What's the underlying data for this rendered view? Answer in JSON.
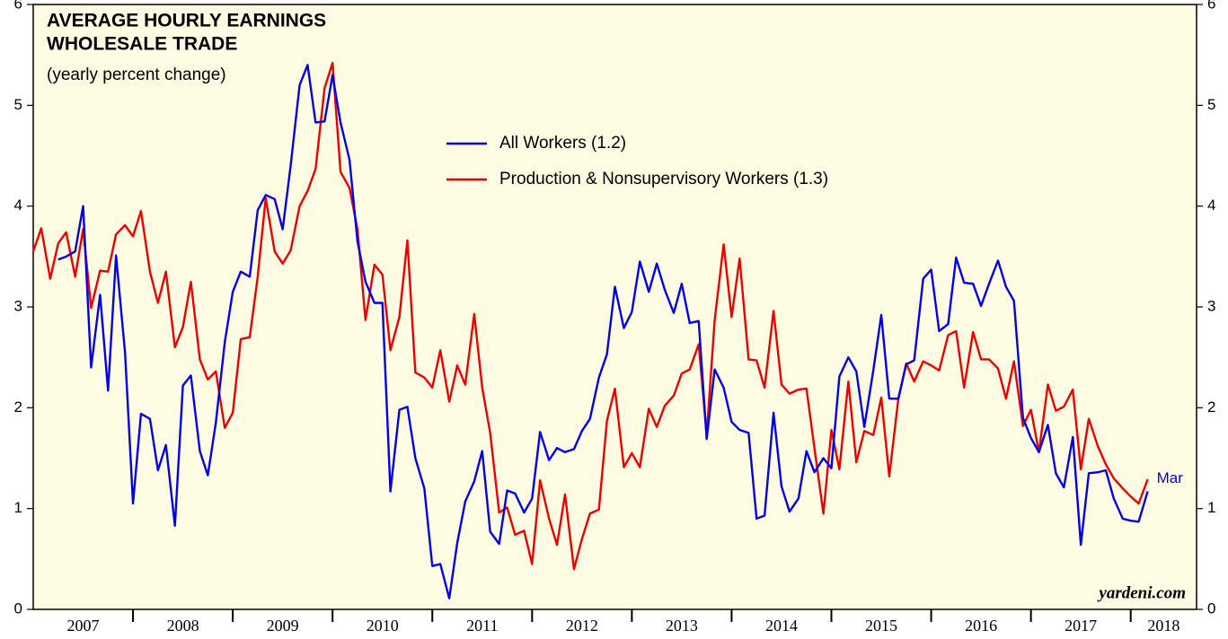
{
  "chart_data": {
    "type": "line",
    "title": [
      "AVERAGE HOURLY EARNINGS",
      "WHOLESALE TRADE"
    ],
    "subtitle": "(yearly percent change)",
    "annotation": "Mar",
    "credit": "yardeni.com",
    "background": "#fdfbe1",
    "x": [
      2007.0,
      2007.08,
      2007.17,
      2007.25,
      2007.33,
      2007.42,
      2007.5,
      2007.58,
      2007.67,
      2007.75,
      2007.83,
      2007.92,
      2008.0,
      2008.08,
      2008.17,
      2008.25,
      2008.33,
      2008.42,
      2008.5,
      2008.58,
      2008.67,
      2008.75,
      2008.83,
      2008.92,
      2009.0,
      2009.08,
      2009.17,
      2009.25,
      2009.33,
      2009.42,
      2009.5,
      2009.58,
      2009.67,
      2009.75,
      2009.83,
      2009.92,
      2010.0,
      2010.08,
      2010.17,
      2010.25,
      2010.33,
      2010.42,
      2010.5,
      2010.58,
      2010.67,
      2010.75,
      2010.83,
      2010.92,
      2011.0,
      2011.08,
      2011.17,
      2011.25,
      2011.33,
      2011.42,
      2011.5,
      2011.58,
      2011.67,
      2011.75,
      2011.83,
      2011.92,
      2012.0,
      2012.08,
      2012.17,
      2012.25,
      2012.33,
      2012.42,
      2012.5,
      2012.58,
      2012.67,
      2012.75,
      2012.83,
      2012.92,
      2013.0,
      2013.08,
      2013.17,
      2013.25,
      2013.33,
      2013.42,
      2013.5,
      2013.58,
      2013.67,
      2013.75,
      2013.83,
      2013.92,
      2014.0,
      2014.08,
      2014.17,
      2014.25,
      2014.33,
      2014.42,
      2014.5,
      2014.58,
      2014.67,
      2014.75,
      2014.83,
      2014.92,
      2015.0,
      2015.08,
      2015.17,
      2015.25,
      2015.33,
      2015.42,
      2015.5,
      2015.58,
      2015.67,
      2015.75,
      2015.83,
      2015.92,
      2016.0,
      2016.08,
      2016.17,
      2016.25,
      2016.33,
      2016.42,
      2016.5,
      2016.58,
      2016.67,
      2016.75,
      2016.83,
      2016.92,
      2017.0,
      2017.08,
      2017.17,
      2017.25,
      2017.33,
      2017.42,
      2017.5,
      2017.58,
      2017.67,
      2017.75,
      2017.83,
      2017.92,
      2018.0,
      2018.08,
      2018.17
    ],
    "series": [
      {
        "name": "All Workers (1.2)",
        "color": "#0000ee",
        "values": [
          null,
          null,
          null,
          3.47,
          3.5,
          3.55,
          4.0,
          2.4,
          3.12,
          2.17,
          3.51,
          2.55,
          1.05,
          1.94,
          1.89,
          1.38,
          1.63,
          0.83,
          2.22,
          2.32,
          1.57,
          1.33,
          1.85,
          2.65,
          3.15,
          3.35,
          3.3,
          3.96,
          4.11,
          4.07,
          3.77,
          4.4,
          5.2,
          5.4,
          4.83,
          4.84,
          5.3,
          4.83,
          4.46,
          3.65,
          3.25,
          3.04,
          3.04,
          1.17,
          1.98,
          2.01,
          1.5,
          1.2,
          0.43,
          0.45,
          0.11,
          0.66,
          1.07,
          1.27,
          1.57,
          0.77,
          0.65,
          1.18,
          1.15,
          0.96,
          1.1,
          1.76,
          1.48,
          1.6,
          1.56,
          1.59,
          1.77,
          1.89,
          2.3,
          2.53,
          3.2,
          2.79,
          2.95,
          3.45,
          3.15,
          3.43,
          3.17,
          2.94,
          3.23,
          2.84,
          2.86,
          1.69,
          2.38,
          2.2,
          1.86,
          1.78,
          1.75,
          0.9,
          0.93,
          1.95,
          1.22,
          0.97,
          1.1,
          1.57,
          1.36,
          1.5,
          1.4,
          2.31,
          2.5,
          2.36,
          1.81,
          2.37,
          2.92,
          2.09,
          2.09,
          2.43,
          2.47,
          3.28,
          3.37,
          2.76,
          2.83,
          3.49,
          3.24,
          3.23,
          3.01,
          3.23,
          3.46,
          3.2,
          3.06,
          1.9,
          1.7,
          1.56,
          1.83,
          1.35,
          1.21,
          1.71,
          0.64,
          1.35,
          1.36,
          1.38,
          1.1,
          0.9,
          0.88,
          0.87,
          1.17
        ]
      },
      {
        "name": "Production & Nonsupervisory Workers (1.3)",
        "color": "#ee0000",
        "values": [
          3.55,
          3.78,
          3.28,
          3.63,
          3.74,
          3.3,
          3.77,
          2.99,
          3.36,
          3.35,
          3.72,
          3.81,
          3.7,
          3.95,
          3.35,
          3.04,
          3.35,
          2.6,
          2.8,
          3.25,
          2.48,
          2.28,
          2.36,
          1.8,
          1.95,
          2.68,
          2.7,
          3.3,
          4.08,
          3.55,
          3.43,
          3.56,
          4.0,
          4.15,
          4.37,
          5.17,
          5.42,
          4.34,
          4.18,
          3.77,
          2.87,
          3.42,
          3.32,
          2.57,
          2.9,
          3.66,
          2.35,
          2.3,
          2.2,
          2.57,
          2.06,
          2.42,
          2.23,
          2.93,
          2.2,
          1.75,
          0.96,
          1.01,
          0.74,
          0.78,
          0.45,
          1.28,
          0.9,
          0.64,
          1.14,
          0.4,
          0.7,
          0.95,
          0.99,
          1.87,
          2.19,
          1.41,
          1.55,
          1.41,
          1.99,
          1.81,
          2.02,
          2.12,
          2.34,
          2.38,
          2.63,
          1.73,
          2.87,
          3.62,
          2.9,
          3.48,
          2.48,
          2.47,
          2.2,
          2.96,
          2.23,
          2.14,
          2.18,
          2.19,
          1.6,
          0.95,
          1.78,
          1.39,
          2.26,
          1.46,
          1.77,
          1.73,
          2.1,
          1.32,
          2.08,
          2.44,
          2.26,
          2.46,
          2.42,
          2.37,
          2.72,
          2.76,
          2.2,
          2.75,
          2.48,
          2.48,
          2.39,
          2.09,
          2.46,
          1.82,
          1.98,
          1.56,
          2.23,
          1.97,
          2.01,
          2.18,
          1.39,
          1.89,
          1.62,
          1.44,
          1.3,
          1.2,
          1.12,
          1.05,
          1.29
        ]
      }
    ],
    "xlim": [
      2007,
      2018.66
    ],
    "xticks": [
      2007,
      2008,
      2009,
      2010,
      2011,
      2012,
      2013,
      2014,
      2015,
      2016,
      2017,
      2018
    ],
    "ylim": [
      0,
      6
    ],
    "yticks": [
      0,
      1,
      2,
      3,
      4,
      5,
      6
    ],
    "y2lim": [
      0,
      6
    ],
    "y2ticks": [
      0,
      1,
      2,
      3,
      4,
      5,
      6
    ]
  }
}
